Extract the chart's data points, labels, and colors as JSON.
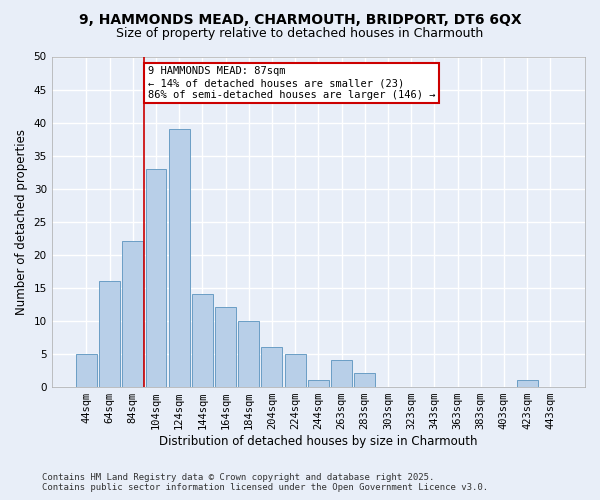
{
  "title_line1": "9, HAMMONDS MEAD, CHARMOUTH, BRIDPORT, DT6 6QX",
  "title_line2": "Size of property relative to detached houses in Charmouth",
  "xlabel": "Distribution of detached houses by size in Charmouth",
  "ylabel": "Number of detached properties",
  "bar_labels": [
    "44sqm",
    "64sqm",
    "84sqm",
    "104sqm",
    "124sqm",
    "144sqm",
    "164sqm",
    "184sqm",
    "204sqm",
    "224sqm",
    "244sqm",
    "263sqm",
    "283sqm",
    "303sqm",
    "323sqm",
    "343sqm",
    "363sqm",
    "383sqm",
    "403sqm",
    "423sqm",
    "443sqm"
  ],
  "bar_values": [
    5,
    16,
    22,
    33,
    39,
    14,
    12,
    10,
    6,
    5,
    1,
    4,
    2,
    0,
    0,
    0,
    0,
    0,
    0,
    1,
    0
  ],
  "bar_color": "#b8cfe8",
  "bar_edge_color": "#6a9ec5",
  "vline_x_index": 2,
  "vline_color": "#cc0000",
  "annotation_text": "9 HAMMONDS MEAD: 87sqm\n← 14% of detached houses are smaller (23)\n86% of semi-detached houses are larger (146) →",
  "annotation_box_color": "#ffffff",
  "annotation_box_edge_color": "#cc0000",
  "ylim": [
    0,
    50
  ],
  "yticks": [
    0,
    5,
    10,
    15,
    20,
    25,
    30,
    35,
    40,
    45,
    50
  ],
  "background_color": "#e8eef8",
  "grid_color": "#ffffff",
  "footer_line1": "Contains HM Land Registry data © Crown copyright and database right 2025.",
  "footer_line2": "Contains public sector information licensed under the Open Government Licence v3.0.",
  "title_fontsize": 10,
  "subtitle_fontsize": 9,
  "axis_label_fontsize": 8.5,
  "tick_fontsize": 7.5,
  "annotation_fontsize": 7.5,
  "footer_fontsize": 6.5
}
